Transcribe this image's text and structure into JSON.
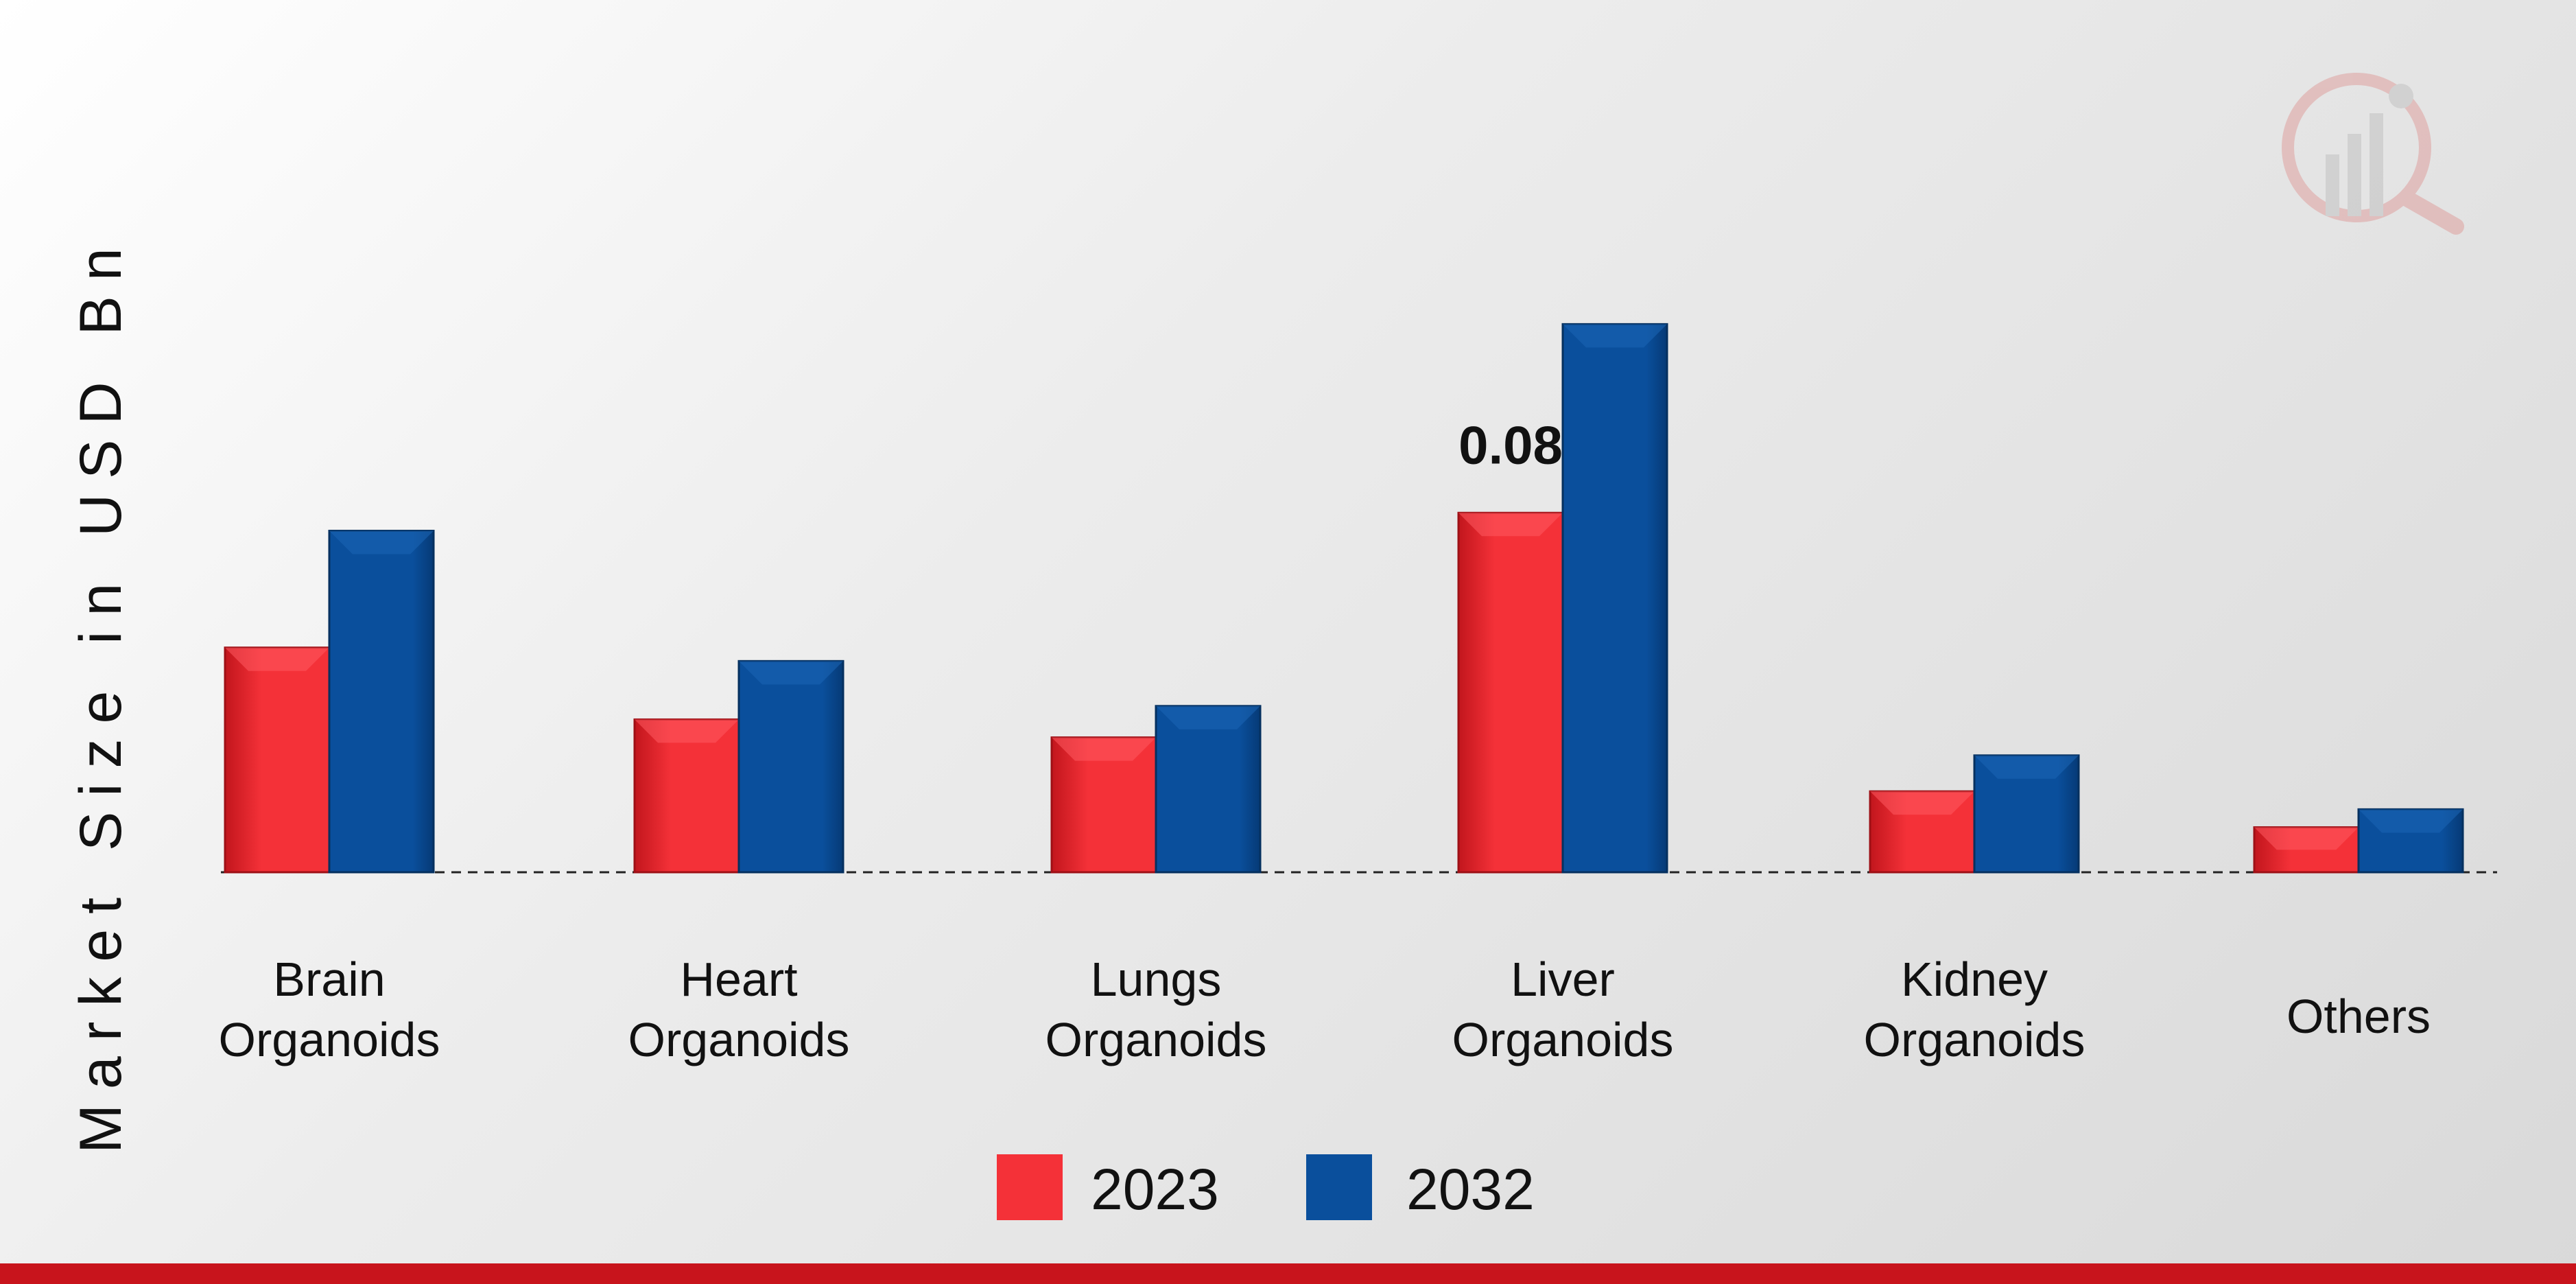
{
  "chart_data": {
    "type": "bar",
    "title": "",
    "xlabel": "",
    "ylabel": "Market Size in USD Bn",
    "categories": [
      [
        "Brain",
        "Organoids"
      ],
      [
        "Heart",
        "Organoids"
      ],
      [
        "Lungs",
        "Organoids"
      ],
      [
        "Liver",
        "Organoids"
      ],
      [
        "Kidney",
        "Organoids"
      ],
      [
        "Others"
      ]
    ],
    "series": [
      {
        "name": "2023",
        "color": "#f43138",
        "values": [
          0.05,
          0.034,
          0.03,
          0.08,
          0.018,
          0.01
        ]
      },
      {
        "name": "2032",
        "color": "#0a4f9c",
        "values": [
          0.076,
          0.047,
          0.037,
          0.122,
          0.026,
          0.014
        ]
      }
    ],
    "ylim": [
      0,
      0.13
    ],
    "annotations": [
      {
        "series": 0,
        "category": 3,
        "text": "0.08"
      }
    ],
    "legend_position": "bottom-center",
    "baseline": "dashed",
    "grid": false
  },
  "theme": {
    "brand_bar_color": "#c8141c",
    "watermark_color": "#d9534f"
  }
}
